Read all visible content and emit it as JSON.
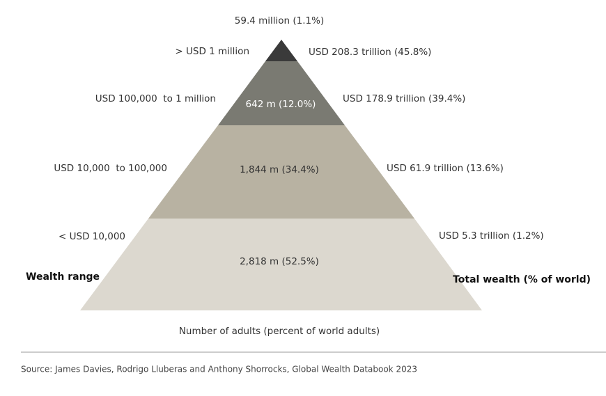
{
  "tiers": [
    {
      "range": "> USD 1 million",
      "adults": "59.4 million (1.1%)",
      "wealth": "USD 208.3 trillion (45.8%)"
    },
    {
      "range": "USD 100,000  to 1 million",
      "adults": "642 m (12.0%)",
      "wealth": "USD 178.9 trillion (39.4%)"
    },
    {
      "range": "USD 10,000  to 100,000",
      "adults": "1,844 m (34.4%)",
      "wealth": "USD 61.9 trillion (13.6%)"
    },
    {
      "range": "< USD 10,000",
      "adults": "2,818 m (52.5%)",
      "wealth": "USD 5.3 trillion (1.2%)"
    }
  ],
  "left_heading": "Wealth range",
  "right_heading": "Total wealth (% of world)",
  "bottom_label": "Number of adults (percent of world adults)",
  "source": "Source: James Davies, Rodrigo Lluberas and Anthony Shorrocks, Global Wealth Databook 2023"
}
